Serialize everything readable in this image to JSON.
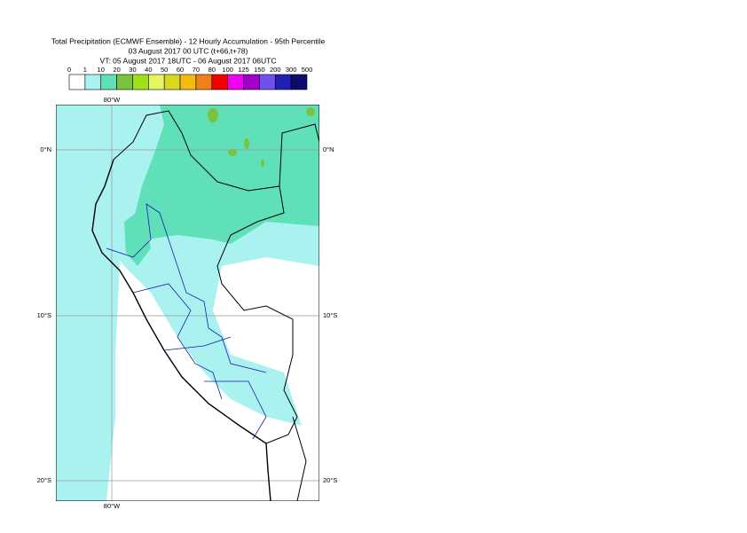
{
  "header": {
    "title": "Total Precipitation (ECMWF Ensemble) - 12 Hourly Accumulation - 95th Percentile",
    "run": "03 August 2017 00 UTC (t+66,t+78)",
    "valid": "VT: 05 August 2017 18UTC - 06 August 2017 06UTC"
  },
  "legend": {
    "levels": [
      0,
      1,
      10,
      20,
      30,
      40,
      50,
      60,
      70,
      80,
      100,
      125,
      150,
      200,
      300,
      500
    ],
    "colors": [
      "#ffffff",
      "#aaf2f0",
      "#5fe0b8",
      "#78c43c",
      "#a0e01a",
      "#e6f460",
      "#d8d820",
      "#f4bc10",
      "#f08018",
      "#f00000",
      "#f000f0",
      "#a000c8",
      "#7050f0",
      "#2020b4",
      "#0c0c6c"
    ]
  },
  "map": {
    "lon_top": "80°W",
    "lon_bottom": "80°W",
    "lat_labels": [
      {
        "left": "0°N",
        "right": "0°N"
      },
      {
        "left": "10°S",
        "right": "10°S"
      },
      {
        "left": "20°S",
        "right": "20°S"
      }
    ]
  }
}
